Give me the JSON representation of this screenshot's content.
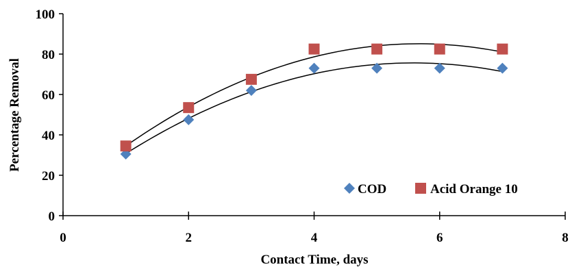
{
  "chart_data": {
    "type": "scatter",
    "title": "",
    "xlabel": "Contact Time, days",
    "ylabel": "Percentage Removal",
    "xlim": [
      0,
      8
    ],
    "ylim": [
      0,
      100
    ],
    "xticks": [
      0,
      2,
      4,
      6,
      8
    ],
    "yticks": [
      0,
      20,
      40,
      60,
      80,
      100
    ],
    "x": [
      1,
      2,
      3,
      4,
      5,
      6,
      7
    ],
    "series": [
      {
        "name": "COD",
        "values": [
          30.5,
          47.5,
          62,
          73,
          73,
          73,
          73
        ],
        "marker": "diamond",
        "color": "#4F81BD",
        "trendline": "polynomial-2"
      },
      {
        "name": "Acid Orange 10",
        "values": [
          34.5,
          53.5,
          67.5,
          82.5,
          82.5,
          82.5,
          82.5
        ],
        "marker": "square",
        "color": "#C0504D",
        "trendline": "polynomial-2"
      }
    ],
    "trendline_color": "#000000",
    "grid": false,
    "legend_position": "bottom-right"
  }
}
